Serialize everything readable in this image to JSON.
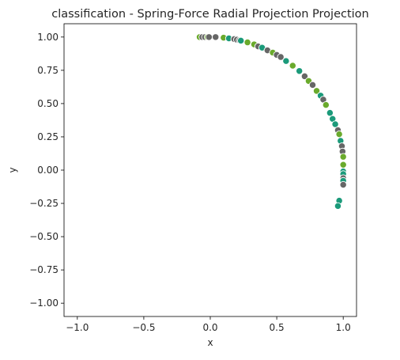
{
  "chart_data": {
    "type": "scatter",
    "title": "classification - Spring-Force Radial Projection Projection",
    "xlabel": "x",
    "ylabel": "y",
    "xlim": [
      -1.1,
      1.1
    ],
    "ylim": [
      -1.1,
      1.1
    ],
    "xticks": [
      -1.0,
      -0.5,
      0.0,
      0.5,
      1.0
    ],
    "xtick_labels": [
      "−1.0",
      "−0.5",
      "0.0",
      "0.5",
      "1.0"
    ],
    "yticks": [
      1.0,
      0.75,
      0.5,
      0.25,
      0.0,
      -0.25,
      -0.5,
      -0.75,
      -1.0
    ],
    "ytick_labels": [
      "1.00",
      "0.75",
      "0.50",
      "0.25",
      "0.00",
      "−0.25",
      "−0.50",
      "−0.75",
      "−1.00"
    ],
    "grid": false,
    "marker_edge_color": "#ffffff",
    "colors": {
      "green": "#6aaa2c",
      "teal": "#1b9a7a",
      "gray": "#666666"
    },
    "points": [
      {
        "x": -0.08,
        "y": 1.0,
        "c": "green"
      },
      {
        "x": -0.06,
        "y": 1.0,
        "c": "gray"
      },
      {
        "x": -0.04,
        "y": 1.0,
        "c": "gray"
      },
      {
        "x": -0.02,
        "y": 1.0,
        "c": "green"
      },
      {
        "x": -0.01,
        "y": 1.0,
        "c": "gray"
      },
      {
        "x": 0.04,
        "y": 1.0,
        "c": "gray"
      },
      {
        "x": 0.1,
        "y": 0.995,
        "c": "green"
      },
      {
        "x": 0.14,
        "y": 0.99,
        "c": "teal"
      },
      {
        "x": 0.18,
        "y": 0.985,
        "c": "gray"
      },
      {
        "x": 0.2,
        "y": 0.98,
        "c": "gray"
      },
      {
        "x": 0.22,
        "y": 0.975,
        "c": "gray"
      },
      {
        "x": 0.23,
        "y": 0.973,
        "c": "teal"
      },
      {
        "x": 0.28,
        "y": 0.96,
        "c": "green"
      },
      {
        "x": 0.33,
        "y": 0.945,
        "c": "green"
      },
      {
        "x": 0.36,
        "y": 0.93,
        "c": "gray"
      },
      {
        "x": 0.39,
        "y": 0.92,
        "c": "teal"
      },
      {
        "x": 0.43,
        "y": 0.9,
        "c": "gray"
      },
      {
        "x": 0.47,
        "y": 0.883,
        "c": "green"
      },
      {
        "x": 0.5,
        "y": 0.866,
        "c": "gray"
      },
      {
        "x": 0.53,
        "y": 0.85,
        "c": "gray"
      },
      {
        "x": 0.57,
        "y": 0.82,
        "c": "teal"
      },
      {
        "x": 0.62,
        "y": 0.785,
        "c": "green"
      },
      {
        "x": 0.67,
        "y": 0.745,
        "c": "teal"
      },
      {
        "x": 0.71,
        "y": 0.705,
        "c": "gray"
      },
      {
        "x": 0.74,
        "y": 0.67,
        "c": "green"
      },
      {
        "x": 0.77,
        "y": 0.64,
        "c": "gray"
      },
      {
        "x": 0.8,
        "y": 0.595,
        "c": "green"
      },
      {
        "x": 0.83,
        "y": 0.56,
        "c": "teal"
      },
      {
        "x": 0.85,
        "y": 0.53,
        "c": "gray"
      },
      {
        "x": 0.87,
        "y": 0.49,
        "c": "green"
      },
      {
        "x": 0.9,
        "y": 0.43,
        "c": "teal"
      },
      {
        "x": 0.92,
        "y": 0.385,
        "c": "teal"
      },
      {
        "x": 0.94,
        "y": 0.345,
        "c": "teal"
      },
      {
        "x": 0.96,
        "y": 0.3,
        "c": "gray"
      },
      {
        "x": 0.97,
        "y": 0.27,
        "c": "green"
      },
      {
        "x": 0.98,
        "y": 0.22,
        "c": "teal"
      },
      {
        "x": 0.99,
        "y": 0.18,
        "c": "gray"
      },
      {
        "x": 0.995,
        "y": 0.14,
        "c": "gray"
      },
      {
        "x": 1.0,
        "y": 0.1,
        "c": "green"
      },
      {
        "x": 1.0,
        "y": 0.04,
        "c": "green"
      },
      {
        "x": 1.0,
        "y": -0.01,
        "c": "teal"
      },
      {
        "x": 1.0,
        "y": -0.03,
        "c": "teal"
      },
      {
        "x": 1.0,
        "y": -0.06,
        "c": "gray"
      },
      {
        "x": 1.0,
        "y": -0.08,
        "c": "teal"
      },
      {
        "x": 1.0,
        "y": -0.11,
        "c": "gray"
      },
      {
        "x": 0.97,
        "y": -0.23,
        "c": "teal"
      },
      {
        "x": 0.96,
        "y": -0.27,
        "c": "teal"
      }
    ]
  }
}
